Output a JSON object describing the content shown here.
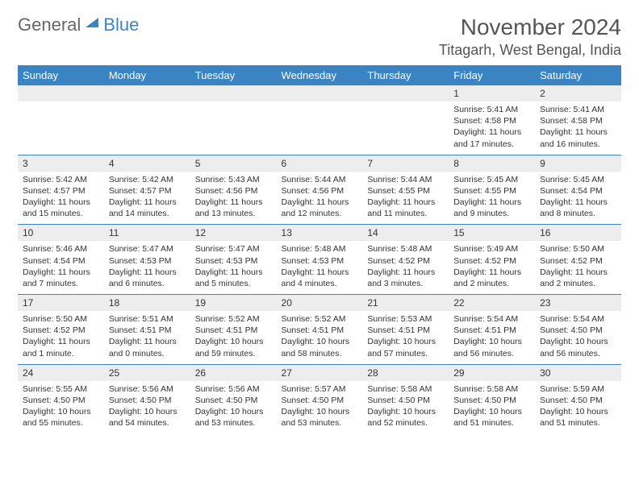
{
  "logo": {
    "word1": "General",
    "word2": "Blue"
  },
  "colors": {
    "header_bg": "#3b84c4",
    "header_text": "#ffffff",
    "daynum_bg": "#ededed",
    "row_border": "#3b84c4",
    "title_text": "#555555",
    "body_text": "#333333"
  },
  "title": "November 2024",
  "location": "Titagarh, West Bengal, India",
  "weekdays": [
    "Sunday",
    "Monday",
    "Tuesday",
    "Wednesday",
    "Thursday",
    "Friday",
    "Saturday"
  ],
  "weeks": [
    [
      {
        "blank": true
      },
      {
        "blank": true
      },
      {
        "blank": true
      },
      {
        "blank": true
      },
      {
        "blank": true
      },
      {
        "day": "1",
        "sunrise": "Sunrise: 5:41 AM",
        "sunset": "Sunset: 4:58 PM",
        "daylight": "Daylight: 11 hours and 17 minutes."
      },
      {
        "day": "2",
        "sunrise": "Sunrise: 5:41 AM",
        "sunset": "Sunset: 4:58 PM",
        "daylight": "Daylight: 11 hours and 16 minutes."
      }
    ],
    [
      {
        "day": "3",
        "sunrise": "Sunrise: 5:42 AM",
        "sunset": "Sunset: 4:57 PM",
        "daylight": "Daylight: 11 hours and 15 minutes."
      },
      {
        "day": "4",
        "sunrise": "Sunrise: 5:42 AM",
        "sunset": "Sunset: 4:57 PM",
        "daylight": "Daylight: 11 hours and 14 minutes."
      },
      {
        "day": "5",
        "sunrise": "Sunrise: 5:43 AM",
        "sunset": "Sunset: 4:56 PM",
        "daylight": "Daylight: 11 hours and 13 minutes."
      },
      {
        "day": "6",
        "sunrise": "Sunrise: 5:44 AM",
        "sunset": "Sunset: 4:56 PM",
        "daylight": "Daylight: 11 hours and 12 minutes."
      },
      {
        "day": "7",
        "sunrise": "Sunrise: 5:44 AM",
        "sunset": "Sunset: 4:55 PM",
        "daylight": "Daylight: 11 hours and 11 minutes."
      },
      {
        "day": "8",
        "sunrise": "Sunrise: 5:45 AM",
        "sunset": "Sunset: 4:55 PM",
        "daylight": "Daylight: 11 hours and 9 minutes."
      },
      {
        "day": "9",
        "sunrise": "Sunrise: 5:45 AM",
        "sunset": "Sunset: 4:54 PM",
        "daylight": "Daylight: 11 hours and 8 minutes."
      }
    ],
    [
      {
        "day": "10",
        "sunrise": "Sunrise: 5:46 AM",
        "sunset": "Sunset: 4:54 PM",
        "daylight": "Daylight: 11 hours and 7 minutes."
      },
      {
        "day": "11",
        "sunrise": "Sunrise: 5:47 AM",
        "sunset": "Sunset: 4:53 PM",
        "daylight": "Daylight: 11 hours and 6 minutes."
      },
      {
        "day": "12",
        "sunrise": "Sunrise: 5:47 AM",
        "sunset": "Sunset: 4:53 PM",
        "daylight": "Daylight: 11 hours and 5 minutes."
      },
      {
        "day": "13",
        "sunrise": "Sunrise: 5:48 AM",
        "sunset": "Sunset: 4:53 PM",
        "daylight": "Daylight: 11 hours and 4 minutes."
      },
      {
        "day": "14",
        "sunrise": "Sunrise: 5:48 AM",
        "sunset": "Sunset: 4:52 PM",
        "daylight": "Daylight: 11 hours and 3 minutes."
      },
      {
        "day": "15",
        "sunrise": "Sunrise: 5:49 AM",
        "sunset": "Sunset: 4:52 PM",
        "daylight": "Daylight: 11 hours and 2 minutes."
      },
      {
        "day": "16",
        "sunrise": "Sunrise: 5:50 AM",
        "sunset": "Sunset: 4:52 PM",
        "daylight": "Daylight: 11 hours and 2 minutes."
      }
    ],
    [
      {
        "day": "17",
        "sunrise": "Sunrise: 5:50 AM",
        "sunset": "Sunset: 4:52 PM",
        "daylight": "Daylight: 11 hours and 1 minute."
      },
      {
        "day": "18",
        "sunrise": "Sunrise: 5:51 AM",
        "sunset": "Sunset: 4:51 PM",
        "daylight": "Daylight: 11 hours and 0 minutes."
      },
      {
        "day": "19",
        "sunrise": "Sunrise: 5:52 AM",
        "sunset": "Sunset: 4:51 PM",
        "daylight": "Daylight: 10 hours and 59 minutes."
      },
      {
        "day": "20",
        "sunrise": "Sunrise: 5:52 AM",
        "sunset": "Sunset: 4:51 PM",
        "daylight": "Daylight: 10 hours and 58 minutes."
      },
      {
        "day": "21",
        "sunrise": "Sunrise: 5:53 AM",
        "sunset": "Sunset: 4:51 PM",
        "daylight": "Daylight: 10 hours and 57 minutes."
      },
      {
        "day": "22",
        "sunrise": "Sunrise: 5:54 AM",
        "sunset": "Sunset: 4:51 PM",
        "daylight": "Daylight: 10 hours and 56 minutes."
      },
      {
        "day": "23",
        "sunrise": "Sunrise: 5:54 AM",
        "sunset": "Sunset: 4:50 PM",
        "daylight": "Daylight: 10 hours and 56 minutes."
      }
    ],
    [
      {
        "day": "24",
        "sunrise": "Sunrise: 5:55 AM",
        "sunset": "Sunset: 4:50 PM",
        "daylight": "Daylight: 10 hours and 55 minutes."
      },
      {
        "day": "25",
        "sunrise": "Sunrise: 5:56 AM",
        "sunset": "Sunset: 4:50 PM",
        "daylight": "Daylight: 10 hours and 54 minutes."
      },
      {
        "day": "26",
        "sunrise": "Sunrise: 5:56 AM",
        "sunset": "Sunset: 4:50 PM",
        "daylight": "Daylight: 10 hours and 53 minutes."
      },
      {
        "day": "27",
        "sunrise": "Sunrise: 5:57 AM",
        "sunset": "Sunset: 4:50 PM",
        "daylight": "Daylight: 10 hours and 53 minutes."
      },
      {
        "day": "28",
        "sunrise": "Sunrise: 5:58 AM",
        "sunset": "Sunset: 4:50 PM",
        "daylight": "Daylight: 10 hours and 52 minutes."
      },
      {
        "day": "29",
        "sunrise": "Sunrise: 5:58 AM",
        "sunset": "Sunset: 4:50 PM",
        "daylight": "Daylight: 10 hours and 51 minutes."
      },
      {
        "day": "30",
        "sunrise": "Sunrise: 5:59 AM",
        "sunset": "Sunset: 4:50 PM",
        "daylight": "Daylight: 10 hours and 51 minutes."
      }
    ]
  ]
}
